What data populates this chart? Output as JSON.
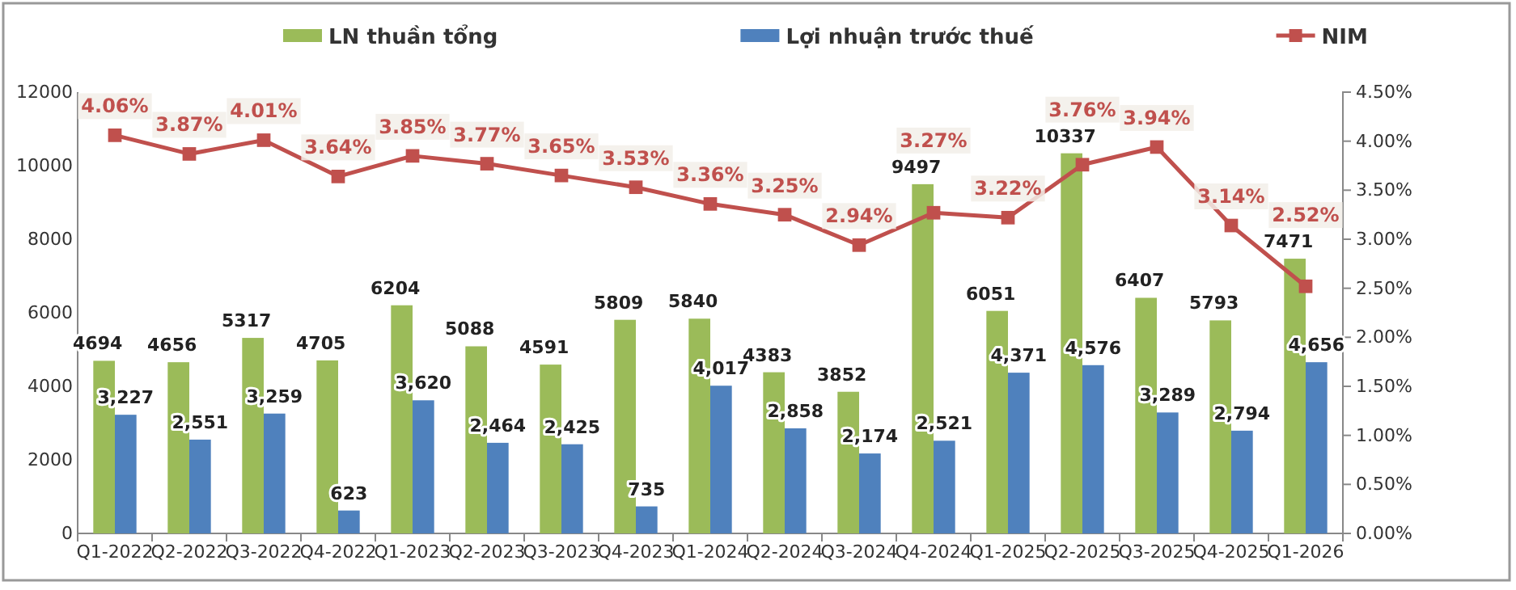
{
  "chart_data": {
    "type": "bar",
    "categories": [
      "Q1-2022",
      "Q2-2022",
      "Q3-2022",
      "Q4-2022",
      "Q1-2023",
      "Q2-2023",
      "Q3-2023",
      "Q4-2023",
      "Q1-2024",
      "Q2-2024",
      "Q3-2024",
      "Q4-2024",
      "Q1-2025",
      "Q2-2025",
      "Q3-2025",
      "Q4-2025",
      "Q1-2026"
    ],
    "series": [
      {
        "name": "LN thuần tổng",
        "color": "#9bbb59",
        "values": [
          4694,
          4656,
          5317,
          4705,
          6204,
          5088,
          4591,
          5809,
          5840,
          4383,
          3852,
          9497,
          6051,
          10337,
          6407,
          5793,
          7471
        ],
        "value_labels": [
          "4694",
          "4656",
          "5317",
          "4705",
          "6204",
          "5088",
          "4591",
          "5809",
          "5840",
          "4383",
          "3852",
          "9497",
          "6051",
          "10337",
          "6407",
          "5793",
          "7471"
        ]
      },
      {
        "name": "Lợi nhuận trước thuế",
        "color": "#4f81bd",
        "values": [
          3227,
          2551,
          3259,
          623,
          3620,
          2464,
          2425,
          735,
          4017,
          2858,
          2174,
          2521,
          4371,
          4576,
          3289,
          2794,
          4656
        ],
        "value_labels": [
          "3,227",
          "2,551",
          "3,259",
          "623",
          "3,620",
          "2,464",
          "2,425",
          "735",
          "4,017",
          "2,858",
          "2,174",
          "2,521",
          "4,371",
          "4,576",
          "3,289",
          "2,794",
          "4,656"
        ]
      },
      {
        "name": "NIM",
        "type": "line",
        "axis": "y2",
        "color": "#c0504d",
        "marker": "square",
        "values": [
          4.06,
          3.87,
          4.01,
          3.64,
          3.85,
          3.77,
          3.65,
          3.53,
          3.36,
          3.25,
          2.94,
          3.27,
          3.22,
          3.76,
          3.94,
          3.14,
          2.52
        ],
        "value_labels": [
          "4.06%",
          "3.87%",
          "4.01%",
          "3.64%",
          "3.85%",
          "3.77%",
          "3.65%",
          "3.53%",
          "3.36%",
          "3.25%",
          "2.94%",
          "3.27%",
          "3.22%",
          "3.76%",
          "3.94%",
          "3.14%",
          "2.52%"
        ]
      }
    ],
    "ylim": [
      0,
      12000
    ],
    "yticks": [
      0,
      2000,
      4000,
      6000,
      8000,
      10000,
      12000
    ],
    "y2lim": [
      0,
      4.5
    ],
    "y2ticks": [
      {
        "value": 0,
        "label": "0.00%"
      },
      {
        "value": 0.5,
        "label": "0.50%"
      },
      {
        "value": 1,
        "label": "1.00%"
      },
      {
        "value": 1.5,
        "label": "1.50%"
      },
      {
        "value": 2,
        "label": "2.00%"
      },
      {
        "value": 2.5,
        "label": "2.50%"
      },
      {
        "value": 3,
        "label": "3.00%"
      },
      {
        "value": 3.5,
        "label": "3.50%"
      },
      {
        "value": 4,
        "label": "4.00%"
      },
      {
        "value": 4.5,
        "label": "4.50%"
      }
    ],
    "legend": "top",
    "grid": false
  }
}
